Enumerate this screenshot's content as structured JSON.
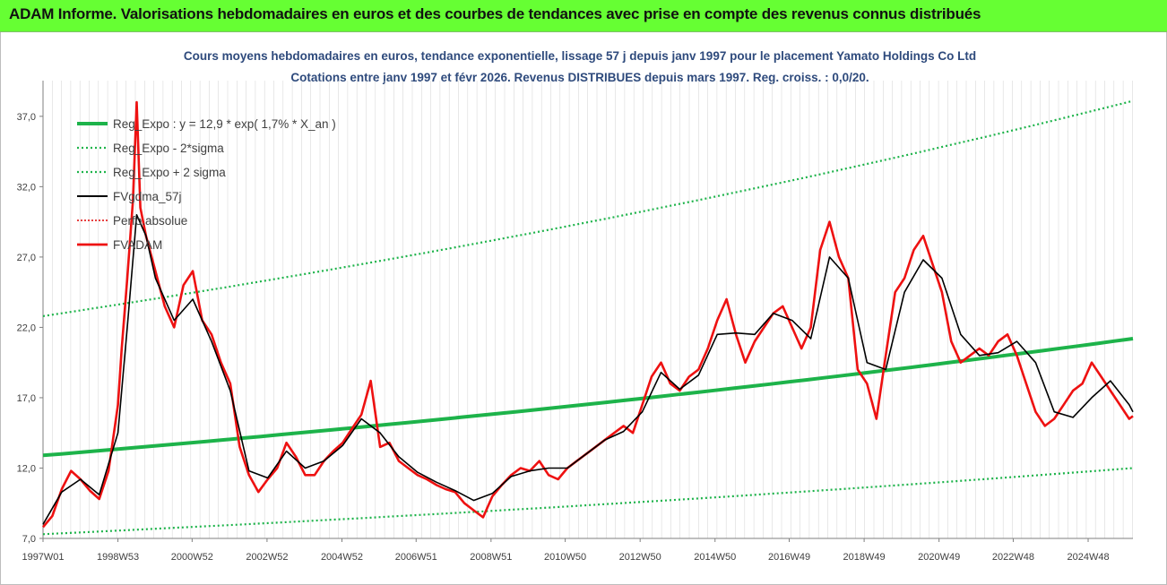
{
  "header": {
    "title": "ADAM Informe. Valorisations hebdomadaires en euros et des courbes de tendances avec prise en compte des revenus connus distribués"
  },
  "chart_data": {
    "type": "line",
    "title_line1": "Cours moyens hebdomadaires en euros, tendance exponentielle, lissage 57 j depuis janv 1997 pour le placement Yamato Holdings Co Ltd",
    "title_line2": "Cotations entre janv 1997 et févr 2026. Revenus DISTRIBUES depuis mars 1997. Reg. croiss. : 0,0/20.",
    "x_tick_labels": [
      "1997W01",
      "1998W53",
      "2000W52",
      "2002W52",
      "2004W52",
      "2006W51",
      "2008W51",
      "2010W50",
      "2012W50",
      "2014W50",
      "2016W49",
      "2018W49",
      "2020W49",
      "2022W48",
      "2024W48"
    ],
    "y_tick_labels": [
      "7,0",
      "12,0",
      "17,0",
      "22,0",
      "27,0",
      "32,0",
      "37,0"
    ],
    "ylim": [
      7,
      38.9
    ],
    "xlim": [
      1997.0,
      2026.1
    ],
    "grid": "vertical",
    "legend_placement": "top-left",
    "legend": [
      "Reg_Expo : y = 12,9 * exp( 1,7% * X_an )",
      "Reg_Expo - 2*sigma",
      "Reg_Expo + 2 sigma",
      "FVgdma_57j",
      "Perfo.absolue",
      "FVADAM"
    ],
    "colors": {
      "reg": "#1db34a",
      "band": "#1db34a",
      "smooth": "#000000",
      "perfo": "#e00000",
      "price": "#ee1111",
      "grid": "#d9d9d9",
      "title": "#2e4a7c",
      "axis_text": "#404040"
    },
    "series": [
      {
        "name": "Reg_Expo : y = 12,9 * exp( 1,7% * X_an )",
        "x": [
          1997.0,
          2026.1
        ],
        "y": [
          12.9,
          21.2
        ]
      },
      {
        "name": "Reg_Expo - 2*sigma",
        "x": [
          1997.0,
          2026.1
        ],
        "y": [
          7.3,
          12.0
        ]
      },
      {
        "name": "Reg_Expo + 2 sigma",
        "x": [
          1997.0,
          2026.1
        ],
        "y": [
          22.8,
          38.1
        ]
      },
      {
        "name": "FVADAM",
        "x": [
          1997.0,
          1997.25,
          1997.5,
          1997.75,
          1998.0,
          1998.25,
          1998.5,
          1998.75,
          1999.0,
          1999.1,
          1999.25,
          1999.4,
          1999.5,
          1999.6,
          1999.75,
          2000.0,
          2000.25,
          2000.5,
          2000.75,
          2001.0,
          2001.25,
          2001.5,
          2001.75,
          2002.0,
          2002.25,
          2002.5,
          2002.75,
          2003.0,
          2003.25,
          2003.5,
          2003.75,
          2004.0,
          2004.25,
          2004.5,
          2004.75,
          2005.0,
          2005.25,
          2005.5,
          2005.75,
          2006.0,
          2006.25,
          2006.5,
          2006.75,
          2007.0,
          2007.25,
          2007.5,
          2007.75,
          2008.0,
          2008.25,
          2008.5,
          2008.75,
          2009.0,
          2009.25,
          2009.5,
          2009.75,
          2010.0,
          2010.25,
          2010.5,
          2010.75,
          2011.0,
          2011.25,
          2011.5,
          2011.75,
          2012.0,
          2012.25,
          2012.5,
          2012.75,
          2013.0,
          2013.25,
          2013.5,
          2013.75,
          2014.0,
          2014.25,
          2014.5,
          2014.75,
          2015.0,
          2015.25,
          2015.5,
          2015.75,
          2016.0,
          2016.25,
          2016.5,
          2016.75,
          2017.0,
          2017.25,
          2017.5,
          2017.75,
          2018.0,
          2018.25,
          2018.5,
          2018.75,
          2019.0,
          2019.25,
          2019.5,
          2019.75,
          2020.0,
          2020.25,
          2020.5,
          2020.75,
          2021.0,
          2021.25,
          2021.5,
          2021.75,
          2022.0,
          2022.25,
          2022.5,
          2022.75,
          2023.0,
          2023.25,
          2023.5,
          2023.75,
          2024.0,
          2024.25,
          2024.5,
          2024.75,
          2025.0,
          2025.25,
          2025.5,
          2025.75,
          2026.0,
          2026.1
        ],
        "y": [
          7.8,
          8.6,
          10.5,
          11.8,
          11.2,
          10.4,
          9.8,
          11.8,
          16.5,
          20.5,
          25.5,
          31.0,
          38.0,
          30.5,
          28.5,
          26.0,
          23.5,
          22.0,
          25.0,
          26.0,
          22.5,
          21.5,
          19.5,
          18.0,
          13.5,
          11.5,
          10.3,
          11.2,
          12.0,
          13.8,
          12.8,
          11.5,
          11.5,
          12.5,
          13.2,
          13.8,
          14.8,
          15.8,
          18.2,
          13.5,
          13.8,
          12.5,
          12.0,
          11.5,
          11.2,
          10.8,
          10.5,
          10.3,
          9.5,
          9.0,
          8.5,
          10.0,
          10.8,
          11.5,
          12.0,
          11.8,
          12.5,
          11.5,
          11.2,
          12.0,
          12.5,
          13.0,
          13.5,
          14.0,
          14.5,
          15.0,
          14.5,
          16.5,
          18.5,
          19.5,
          18.0,
          17.5,
          18.5,
          19.0,
          20.5,
          22.5,
          24.0,
          21.5,
          19.5,
          21.0,
          22.0,
          23.0,
          23.5,
          22.0,
          20.5,
          22.0,
          27.5,
          29.5,
          27.0,
          25.5,
          19.0,
          18.0,
          15.5,
          20.0,
          24.5,
          25.5,
          27.5,
          28.5,
          26.5,
          24.5,
          21.0,
          19.5,
          20.0,
          20.5,
          20.0,
          21.0,
          21.5,
          20.0,
          18.0,
          16.0,
          15.0,
          15.5,
          16.5,
          17.5,
          18.0,
          19.5,
          18.5,
          17.5,
          16.5,
          15.5,
          15.7
        ]
      },
      {
        "name": "FVgdma_57j",
        "x": [
          1997.0,
          1997.5,
          1998.0,
          1998.5,
          1999.0,
          1999.25,
          1999.5,
          1999.75,
          2000.0,
          2000.5,
          2001.0,
          2001.5,
          2002.0,
          2002.5,
          2003.0,
          2003.5,
          2004.0,
          2004.5,
          2005.0,
          2005.5,
          2006.0,
          2006.5,
          2007.0,
          2007.5,
          2008.0,
          2008.5,
          2009.0,
          2009.5,
          2010.0,
          2010.5,
          2011.0,
          2011.5,
          2012.0,
          2012.5,
          2013.0,
          2013.5,
          2014.0,
          2014.5,
          2015.0,
          2015.5,
          2016.0,
          2016.5,
          2017.0,
          2017.5,
          2018.0,
          2018.5,
          2019.0,
          2019.5,
          2020.0,
          2020.5,
          2021.0,
          2021.5,
          2022.0,
          2022.5,
          2023.0,
          2023.5,
          2024.0,
          2024.5,
          2025.0,
          2025.5,
          2026.0,
          2026.1
        ],
        "y": [
          8.0,
          10.3,
          11.2,
          10.1,
          14.5,
          22.0,
          30.0,
          28.5,
          25.5,
          22.5,
          24.0,
          21.0,
          17.5,
          11.8,
          11.3,
          13.2,
          12.0,
          12.5,
          13.6,
          15.5,
          14.5,
          12.8,
          11.7,
          11.0,
          10.4,
          9.7,
          10.2,
          11.4,
          11.8,
          12.0,
          12.0,
          13.0,
          14.0,
          14.6,
          16.0,
          18.8,
          17.6,
          18.6,
          21.5,
          21.6,
          21.5,
          23.0,
          22.5,
          21.2,
          27.0,
          25.5,
          19.5,
          19.0,
          24.5,
          26.8,
          25.5,
          21.5,
          20.0,
          20.2,
          21.0,
          19.5,
          16.0,
          15.6,
          17.0,
          18.2,
          16.5,
          16.0
        ]
      }
    ]
  }
}
